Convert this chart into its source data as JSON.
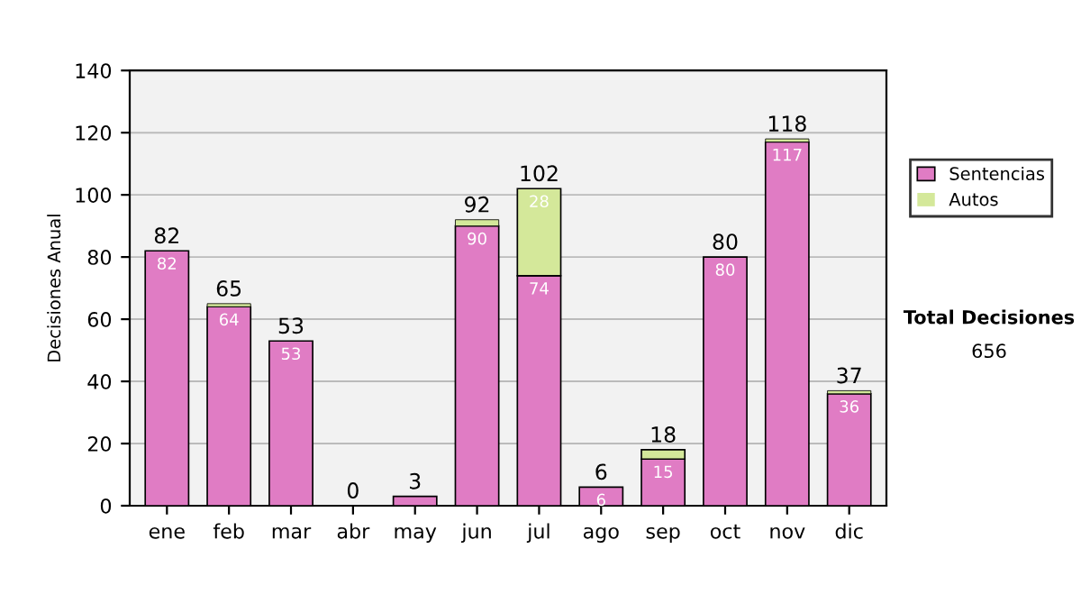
{
  "chart_data": {
    "type": "bar",
    "stacked": true,
    "ylabel": "Decisiones Anual",
    "categories": [
      "ene",
      "feb",
      "mar",
      "abr",
      "may",
      "jun",
      "jul",
      "ago",
      "sep",
      "oct",
      "nov",
      "dic"
    ],
    "series": [
      {
        "name": "Sentencias",
        "color": "#e07cc4",
        "values": [
          82,
          64,
          53,
          0,
          3,
          90,
          74,
          6,
          15,
          80,
          117,
          36
        ],
        "value_labels": [
          "82",
          "64",
          "53",
          null,
          null,
          "90",
          "74",
          "6",
          "15",
          "80",
          "117",
          "36"
        ]
      },
      {
        "name": "Autos",
        "color": "#d4e89a",
        "values": [
          0,
          1,
          0,
          0,
          0,
          2,
          28,
          0,
          3,
          0,
          1,
          1
        ],
        "value_labels": [
          null,
          null,
          null,
          null,
          null,
          null,
          "28",
          null,
          null,
          null,
          null,
          null
        ]
      }
    ],
    "totals": [
      "82",
      "65",
      "53",
      "0",
      "3",
      "92",
      "102",
      "6",
      "18",
      "80",
      "118",
      "37"
    ],
    "ylim": [
      0,
      140
    ],
    "yticks": [
      0,
      20,
      40,
      60,
      80,
      100,
      120,
      140
    ],
    "grid": "y",
    "legend": "right",
    "annotations": [
      "Total Decisiones",
      "656"
    ]
  }
}
